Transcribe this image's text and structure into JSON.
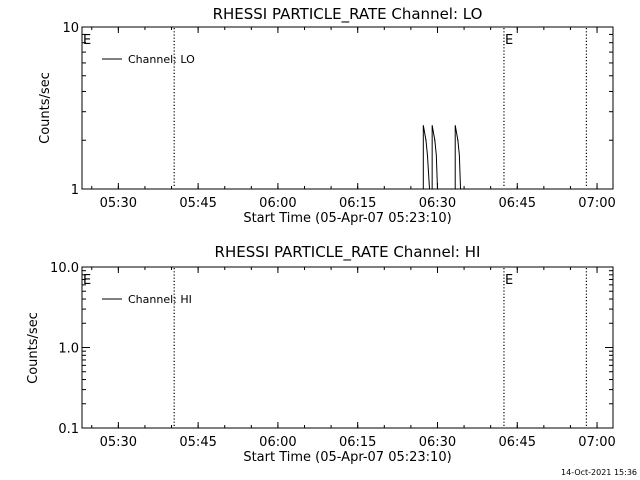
{
  "chart_data": [
    {
      "type": "line",
      "title": "RHESSI PARTICLE_RATE Channel: LO",
      "xlabel": "Start Time (05-Apr-07 05:23:10)",
      "ylabel": "Counts/sec",
      "yscale": "log",
      "xlim": [
        "05:23:10",
        "07:03:00"
      ],
      "ylim": [
        1,
        10
      ],
      "xticks": [
        "05:30",
        "05:45",
        "06:00",
        "06:15",
        "06:30",
        "06:45",
        "07:00"
      ],
      "yticks": [
        "1",
        "10"
      ],
      "grid": false,
      "legend": {
        "position": "top-left",
        "entries": [
          "Channel: LO"
        ]
      },
      "series": [
        {
          "name": "Channel: LO",
          "color": "#000000",
          "x": [
            "06:27:20",
            "06:27:50",
            "06:28:30",
            "06:29:00",
            "06:29:30",
            "06:30:00",
            "06:33:20",
            "06:33:50",
            "06:34:20"
          ],
          "y": [
            1,
            2,
            1,
            1,
            2,
            1,
            1,
            2,
            1
          ]
        }
      ],
      "vlines": [
        {
          "x": "05:40:30",
          "style": "dotted",
          "label": ""
        },
        {
          "x": "06:42:30",
          "style": "dotted",
          "label": "E"
        },
        {
          "x": "06:58:00",
          "style": "dotted",
          "label": ""
        }
      ],
      "edge_label": "E"
    },
    {
      "type": "line",
      "title": "RHESSI PARTICLE_RATE Channel: HI",
      "xlabel": "Start Time (05-Apr-07 05:23:10)",
      "ylabel": "Counts/sec",
      "yscale": "log",
      "xlim": [
        "05:23:10",
        "07:03:00"
      ],
      "ylim": [
        0.1,
        10
      ],
      "xticks": [
        "05:30",
        "05:45",
        "06:00",
        "06:15",
        "06:30",
        "06:45",
        "07:00"
      ],
      "yticks": [
        "0.1",
        "1.0",
        "10.0"
      ],
      "grid": false,
      "legend": {
        "position": "top-left",
        "entries": [
          "Channel: HI"
        ]
      },
      "series": [
        {
          "name": "Channel: HI",
          "color": "#000000",
          "x": [],
          "y": []
        }
      ],
      "vlines": [
        {
          "x": "05:40:30",
          "style": "dotted",
          "label": ""
        },
        {
          "x": "06:42:30",
          "style": "dotted",
          "label": "E"
        },
        {
          "x": "06:58:00",
          "style": "dotted",
          "label": ""
        }
      ],
      "edge_label": "E"
    }
  ],
  "footer": {
    "timestamp": "14-Oct-2021 15:36"
  }
}
